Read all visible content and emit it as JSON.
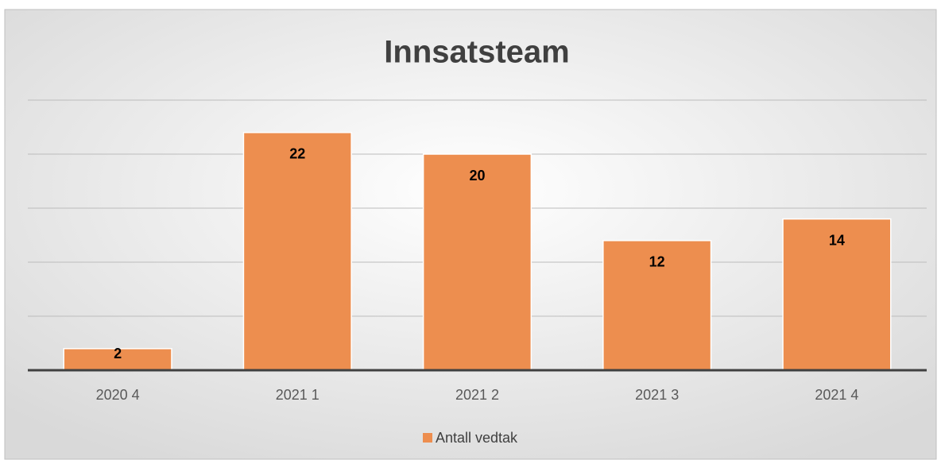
{
  "chart_data": {
    "type": "bar",
    "title": "Innsatsteam",
    "categories": [
      "2020 4",
      "2021 1",
      "2021 2",
      "2021 3",
      "2021 4"
    ],
    "series": [
      {
        "name": "Antall vedtak",
        "color": "#ed8e4f",
        "values": [
          2,
          22,
          20,
          12,
          14
        ]
      }
    ],
    "ylim": [
      0,
      25
    ],
    "yticks": [
      0,
      5,
      10,
      15,
      20,
      25
    ],
    "grid": true,
    "legend": "bottom"
  }
}
